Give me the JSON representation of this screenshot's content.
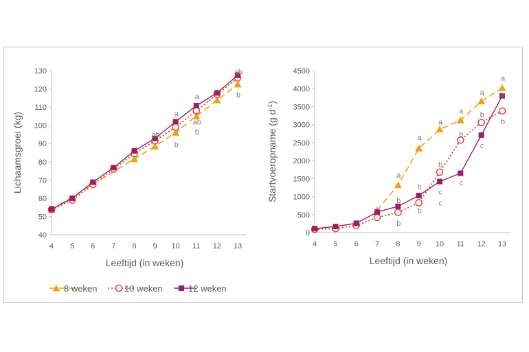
{
  "legend": {
    "items": [
      {
        "key": "w8",
        "label": "8 weken"
      },
      {
        "key": "w10",
        "label": "10 weken"
      },
      {
        "key": "w12",
        "label": "12 weken"
      }
    ]
  },
  "colors": {
    "w8": "#f0a30a",
    "w10": "#e8312f",
    "w12": "#9c1f63",
    "axis": "#bfbfbf",
    "frame": "#bfbfbf",
    "text": "#595959",
    "letters": "#7f7f7f"
  },
  "chart_data": [
    {
      "type": "line",
      "title": "",
      "xlabel": "Leeftijd (in weken)",
      "ylabel": "Lichaamsgroei (kg)",
      "x": [
        4,
        5,
        6,
        7,
        8,
        9,
        10,
        11,
        12,
        13
      ],
      "xlim": [
        4,
        13
      ],
      "ylim": [
        40,
        130
      ],
      "yticks": [
        40,
        50,
        60,
        70,
        80,
        90,
        100,
        110,
        120,
        130
      ],
      "series": [
        {
          "key": "w8",
          "name": "8 weken",
          "x": [
            4,
            8,
            9,
            10,
            11,
            12,
            13
          ],
          "values": [
            53.8,
            81.5,
            88.5,
            96.0,
            105.0,
            113.8,
            122.5
          ]
        },
        {
          "key": "w10",
          "name": "10 weken",
          "x": [
            4,
            5,
            6,
            7,
            8,
            9,
            10,
            11,
            12,
            13
          ],
          "values": [
            53.8,
            59.0,
            67.5,
            76.0,
            84.5,
            91.5,
            99.0,
            108.0,
            117.0,
            126.0
          ]
        },
        {
          "key": "w12",
          "name": "12 weken",
          "x": [
            4,
            5,
            6,
            7,
            8,
            9,
            10,
            11,
            12,
            13
          ],
          "values": [
            54.0,
            60.0,
            68.8,
            76.8,
            86.0,
            92.8,
            102.0,
            110.8,
            117.8,
            127.5
          ]
        }
      ],
      "annotations": [
        {
          "x": 9,
          "y": 95.0,
          "text": "ab"
        },
        {
          "x": 10,
          "y": 106.5,
          "text": "a"
        },
        {
          "x": 10,
          "y": 89.5,
          "text": "b"
        },
        {
          "x": 11,
          "y": 116.0,
          "text": "a"
        },
        {
          "x": 11,
          "y": 102.0,
          "text": "ab"
        },
        {
          "x": 11,
          "y": 96.5,
          "text": "b"
        },
        {
          "x": 13,
          "y": 129.5,
          "text": "ab"
        },
        {
          "x": 13,
          "y": 116.8,
          "text": "b"
        }
      ]
    },
    {
      "type": "line",
      "title": "",
      "xlabel": "Leeftijd (in weken)",
      "ylabel": "Startvoeropname (g d",
      "ylabel_sup": "-1",
      "ylabel_end": ")",
      "x": [
        4,
        5,
        6,
        7,
        8,
        9,
        10,
        11,
        12,
        13
      ],
      "xlim": [
        4,
        13
      ],
      "ylim": [
        0,
        4500
      ],
      "yticks": [
        0,
        500,
        1000,
        1500,
        2000,
        2500,
        3000,
        3500,
        4000,
        4500
      ],
      "series": [
        {
          "key": "w8",
          "name": "8 weken",
          "x": [
            7,
            8,
            9,
            10,
            11,
            12,
            13
          ],
          "values": [
            620,
            1320,
            2340,
            2870,
            3120,
            3650,
            4020
          ]
        },
        {
          "key": "w10",
          "name": "10 weken",
          "x": [
            4,
            5,
            6,
            7,
            8,
            9,
            10,
            11,
            12,
            13
          ],
          "values": [
            90,
            110,
            200,
            420,
            560,
            830,
            1680,
            2570,
            3060,
            3380
          ]
        },
        {
          "key": "w12",
          "name": "12 weken",
          "x": [
            4,
            5,
            6,
            7,
            8,
            9,
            10,
            11,
            12,
            13
          ],
          "values": [
            110,
            170,
            260,
            570,
            730,
            1030,
            1420,
            1650,
            2710,
            3800
          ]
        }
      ],
      "annotations": [
        {
          "x": 8,
          "y": 1600,
          "text": "a"
        },
        {
          "x": 8,
          "y": 900,
          "text": "b"
        },
        {
          "x": 8,
          "y": 270,
          "text": "b"
        },
        {
          "x": 9,
          "y": 2650,
          "text": "a"
        },
        {
          "x": 9,
          "y": 1280,
          "text": "b"
        },
        {
          "x": 9,
          "y": 620,
          "text": "b"
        },
        {
          "x": 10,
          "y": 3080,
          "text": "a"
        },
        {
          "x": 10,
          "y": 1900,
          "text": "b"
        },
        {
          "x": 10,
          "y": 1130,
          "text": "c"
        },
        {
          "x": 10,
          "y": 830,
          "text": "c"
        },
        {
          "x": 11,
          "y": 3380,
          "text": "a"
        },
        {
          "x": 11,
          "y": 2740,
          "text": "b"
        },
        {
          "x": 11,
          "y": 1390,
          "text": "c"
        },
        {
          "x": 12,
          "y": 3900,
          "text": "a"
        },
        {
          "x": 12,
          "y": 3280,
          "text": "b"
        },
        {
          "x": 12,
          "y": 2420,
          "text": "c"
        },
        {
          "x": 13,
          "y": 4300,
          "text": "a"
        },
        {
          "x": 13,
          "y": 3830,
          "text": "a"
        },
        {
          "x": 13,
          "y": 3090,
          "text": "b"
        }
      ]
    }
  ]
}
